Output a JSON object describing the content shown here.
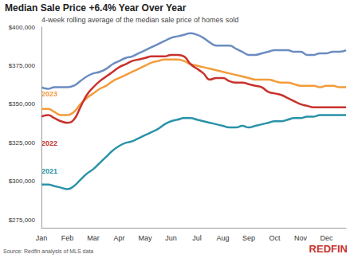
{
  "chart_data": {
    "type": "line",
    "title": "Median Sale Price +6.4% Year Over Year",
    "subtitle": "4-week rolling average of the median sale price of homes sold",
    "source": "Source: Redfin analysis of MLS data",
    "logo": "REDFIN",
    "categories": [
      "Jan",
      null,
      null,
      null,
      "Feb",
      null,
      null,
      null,
      "Mar",
      null,
      null,
      null,
      "Apr",
      null,
      null,
      null,
      "May",
      null,
      null,
      null,
      "Jun",
      null,
      null,
      null,
      "Jul",
      null,
      null,
      null,
      "Aug",
      null,
      null,
      null,
      "Sep",
      null,
      null,
      null,
      "Oct",
      null,
      null,
      null,
      "Nov",
      null,
      null,
      null,
      "Dec",
      null,
      null,
      null
    ],
    "ylim": [
      270000,
      400000
    ],
    "yticks": [
      {
        "value": 275000,
        "label": "$275,000"
      },
      {
        "value": 300000,
        "label": "$300,000"
      },
      {
        "value": 325000,
        "label": "$325,000"
      },
      {
        "value": 350000,
        "label": "$350,000"
      },
      {
        "value": 375000,
        "label": "$375,000"
      },
      {
        "value": 400000,
        "label": "$400,000"
      }
    ],
    "grid": false,
    "series": [
      {
        "color": "#6a8cc0",
        "values": [
          361000,
          360000,
          361000,
          361000,
          361000,
          362000,
          365000,
          368000,
          370000,
          371000,
          373000,
          376000,
          378000,
          380000,
          381000,
          383000,
          385000,
          387000,
          389000,
          391000,
          393000,
          394000,
          395000,
          396000,
          395000,
          393000,
          390000,
          388000,
          388000,
          388000,
          386000,
          384000,
          382000,
          382000,
          383000,
          384000,
          385000,
          385000,
          385000,
          384000,
          384000,
          382000,
          382000,
          383000,
          383000,
          384000,
          384000,
          385000
        ]
      },
      {
        "name": "2023",
        "color": "#f39c3a",
        "values": [
          347000,
          347000,
          345000,
          343000,
          343000,
          345000,
          350000,
          354000,
          357000,
          360000,
          362000,
          365000,
          367000,
          369000,
          371000,
          373000,
          375000,
          377000,
          378000,
          379000,
          379000,
          379000,
          378000,
          376000,
          375000,
          374000,
          373000,
          372000,
          371000,
          370000,
          369000,
          368000,
          367000,
          366000,
          366000,
          366000,
          365000,
          364000,
          364000,
          363000,
          362000,
          362000,
          362000,
          361000,
          362000,
          362000,
          361000,
          361000
        ]
      },
      {
        "name": "2022",
        "color": "#c8322c",
        "values": [
          342000,
          343000,
          341000,
          339000,
          338000,
          340000,
          348000,
          356000,
          361000,
          365000,
          368000,
          371000,
          374000,
          376000,
          378000,
          379000,
          380000,
          381000,
          381000,
          381000,
          382000,
          382000,
          381000,
          376000,
          373000,
          370000,
          366000,
          367000,
          367000,
          365000,
          364000,
          364000,
          363000,
          362000,
          361000,
          358000,
          357000,
          356000,
          354000,
          352000,
          350000,
          349000,
          348000,
          348000,
          348000,
          348000,
          348000,
          348000
        ]
      },
      {
        "name": "2021",
        "color": "#2a93a8",
        "values": [
          298000,
          298000,
          297000,
          296000,
          295000,
          297000,
          301000,
          305000,
          308000,
          312000,
          316000,
          320000,
          323000,
          325000,
          326000,
          328000,
          330000,
          332000,
          334000,
          337000,
          339000,
          340000,
          341000,
          341000,
          340000,
          339000,
          338000,
          337000,
          336000,
          335000,
          335000,
          336000,
          335000,
          336000,
          337000,
          338000,
          339000,
          339000,
          340000,
          341000,
          341000,
          342000,
          342000,
          343000,
          343000,
          343000,
          343000,
          343000
        ]
      }
    ]
  }
}
